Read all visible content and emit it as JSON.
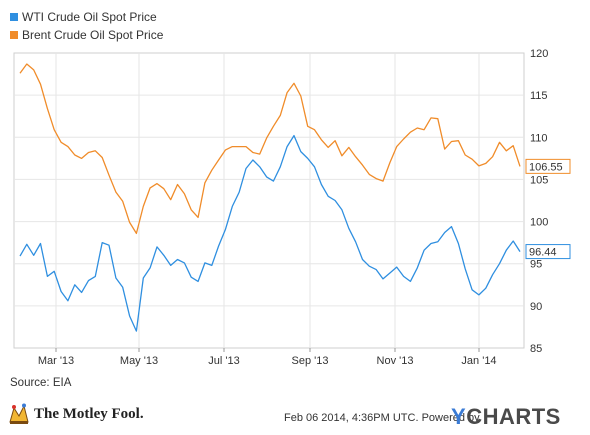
{
  "chart_data": {
    "type": "line",
    "ylim": [
      85,
      120
    ],
    "yticks": [
      85,
      90,
      95,
      100,
      105,
      110,
      115,
      120
    ],
    "xticks": [
      "Mar '13",
      "May '13",
      "Jul '13",
      "Sep '13",
      "Nov '13",
      "Jan '14"
    ],
    "grid": true,
    "legend_position": "top-left",
    "series": [
      {
        "name": "WTI Crude Oil Spot Price",
        "color": "#2f8fe0",
        "end_label": "96.44",
        "values": [
          95.9,
          97.3,
          96.0,
          97.4,
          93.5,
          94.1,
          91.7,
          90.6,
          92.5,
          91.6,
          93.0,
          93.5,
          97.5,
          97.2,
          93.3,
          92.2,
          88.8,
          87.0,
          93.3,
          94.5,
          97.0,
          96.0,
          94.8,
          95.5,
          95.1,
          93.4,
          92.9,
          95.1,
          94.8,
          97.1,
          99.1,
          101.8,
          103.5,
          106.3,
          107.3,
          106.5,
          105.3,
          104.8,
          106.5,
          108.9,
          110.2,
          108.3,
          107.5,
          106.5,
          104.4,
          103.0,
          102.5,
          101.4,
          99.2,
          97.6,
          95.5,
          94.7,
          94.3,
          93.2,
          93.9,
          94.6,
          93.5,
          92.9,
          94.5,
          96.6,
          97.4,
          97.6,
          98.7,
          99.4,
          97.4,
          94.4,
          91.9,
          91.3,
          92.1,
          93.7,
          95.0,
          96.6,
          97.7,
          96.44
        ]
      },
      {
        "name": "Brent Crude Oil Spot Price",
        "color": "#f08c2a",
        "end_label": "106.55",
        "values": [
          117.6,
          118.7,
          118.0,
          116.3,
          113.4,
          110.9,
          109.4,
          108.9,
          107.9,
          107.5,
          108.2,
          108.4,
          107.6,
          105.5,
          103.5,
          102.4,
          99.9,
          98.6,
          101.8,
          104.0,
          104.5,
          103.9,
          102.6,
          104.4,
          103.3,
          101.4,
          100.5,
          104.6,
          106.1,
          107.3,
          108.5,
          108.9,
          108.9,
          108.9,
          108.2,
          108.0,
          109.9,
          111.3,
          112.6,
          115.3,
          116.4,
          114.9,
          111.3,
          110.9,
          109.7,
          108.8,
          109.6,
          107.8,
          108.8,
          107.7,
          106.7,
          105.6,
          105.1,
          104.8,
          107.0,
          108.9,
          109.8,
          110.6,
          111.1,
          110.9,
          112.3,
          112.2,
          108.6,
          109.5,
          109.6,
          107.9,
          107.4,
          106.6,
          106.9,
          107.7,
          109.4,
          108.4,
          109.0,
          106.55
        ]
      }
    ]
  },
  "source_text": "Source: EIA",
  "footer": {
    "date_text": "Feb 06 2014, 4:36PM UTC.  Powered by",
    "ycharts_y": "Y",
    "ycharts_rest": "CHARTS",
    "motley_text": "The Motley Fool."
  }
}
